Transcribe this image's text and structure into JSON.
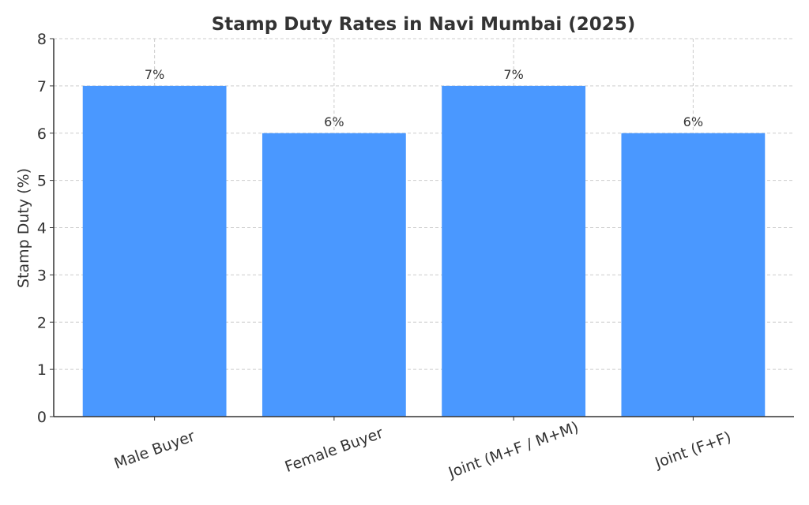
{
  "chart_data": {
    "type": "bar",
    "title": "Stamp Duty Rates in Navi Mumbai (2025)",
    "xlabel": "",
    "ylabel": "Stamp Duty (%)",
    "categories": [
      "Male Buyer",
      "Female Buyer",
      "Joint (M+F / M+M)",
      "Joint (F+F)"
    ],
    "values": [
      7,
      6,
      7,
      6
    ],
    "data_labels": [
      "7%",
      "6%",
      "7%",
      "6%"
    ],
    "ylim": [
      0,
      8
    ],
    "yticks": [
      0,
      1,
      2,
      3,
      4,
      5,
      6,
      7,
      8
    ],
    "grid": true,
    "bar_color": "#4a98ff",
    "xtick_rotation": -20
  }
}
